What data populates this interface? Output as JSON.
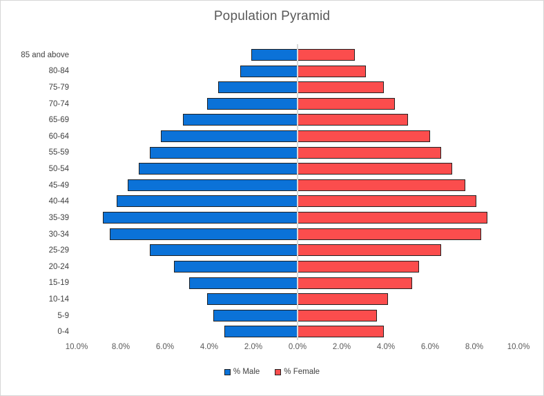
{
  "chart_data": {
    "type": "bar",
    "subtype": "population-pyramid",
    "orientation": "horizontal",
    "title": "Population Pyramid",
    "categories": [
      "85 and above",
      "80-84",
      "75-79",
      "70-74",
      "65-69",
      "60-64",
      "55-59",
      "50-54",
      "45-49",
      "40-44",
      "35-39",
      "30-34",
      "25-29",
      "20-24",
      "15-19",
      "10-14",
      "5-9",
      "0-4"
    ],
    "series": [
      {
        "name": "% Male",
        "side": "left",
        "color": "#0b72d8",
        "values": [
          2.1,
          2.6,
          3.6,
          4.1,
          5.2,
          6.2,
          6.7,
          7.2,
          7.7,
          8.2,
          8.8,
          8.5,
          6.7,
          5.6,
          4.9,
          4.1,
          3.8,
          3.3
        ]
      },
      {
        "name": "% Female",
        "side": "right",
        "color": "#fb4d4d",
        "values": [
          2.6,
          3.1,
          3.9,
          4.4,
          5.0,
          6.0,
          6.5,
          7.0,
          7.6,
          8.1,
          8.6,
          8.3,
          6.5,
          5.5,
          5.2,
          4.1,
          3.6,
          3.9
        ]
      }
    ],
    "x_axis": {
      "ticks": [
        "10.0%",
        "8.0%",
        "6.0%",
        "4.0%",
        "2.0%",
        "0.0%",
        "2.0%",
        "4.0%",
        "6.0%",
        "8.0%",
        "10.0%"
      ],
      "max_each_side": 10.0
    },
    "grid": false,
    "legend_position": "bottom",
    "colors": {
      "male_fill": "#0b72d8",
      "female_fill": "#fb4d4d",
      "bar_border": "#212121",
      "axis_line": "#d9d9d9",
      "title_text": "#595959",
      "tick_text": "#595959",
      "category_text": "#404040",
      "frame_border": "#d6d6d6"
    }
  }
}
